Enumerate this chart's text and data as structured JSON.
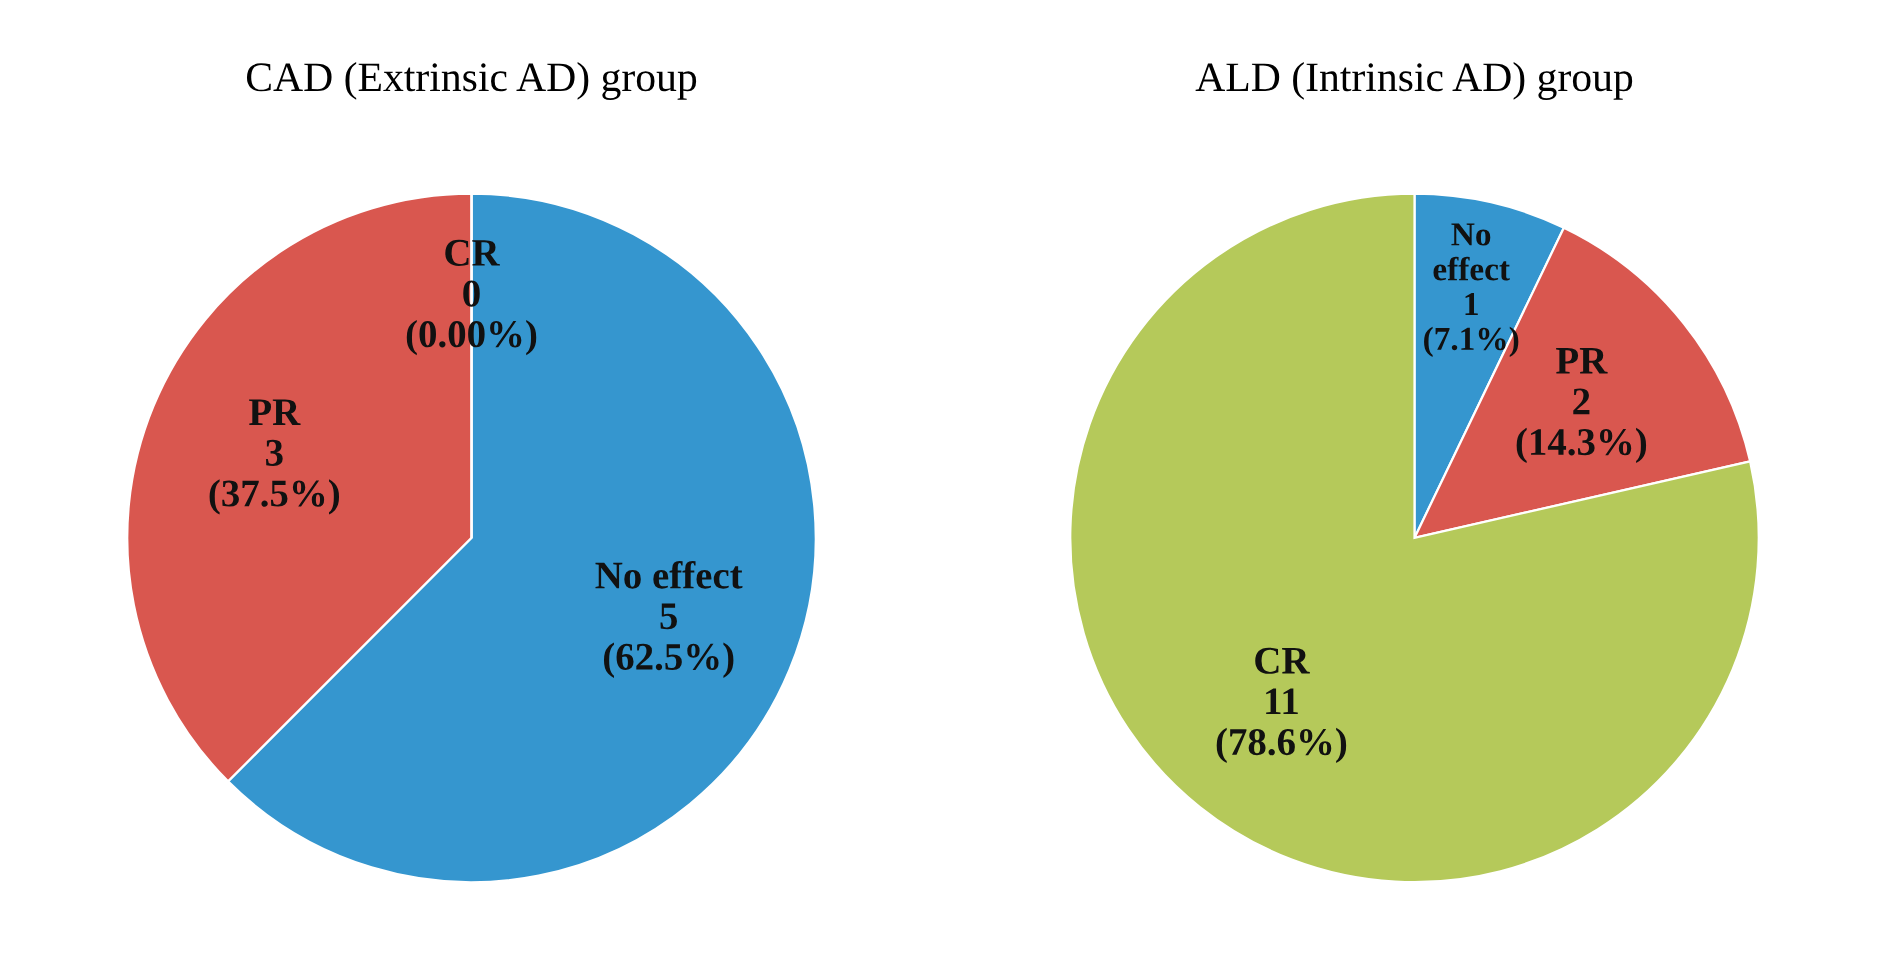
{
  "chart_data": [
    {
      "type": "pie",
      "title": "CAD (Extrinsic AD) group",
      "categories": [
        "No effect",
        "PR",
        "CR"
      ],
      "values": [
        5,
        3,
        0
      ],
      "colors": [
        "#3596cf",
        "#d9574f",
        "#b5c95a"
      ],
      "value_labels": [
        "5\n(62.5%)",
        "3\n(37.5%)",
        "0\n(0.00%)"
      ]
    },
    {
      "type": "pie",
      "title": "ALD (Intrinsic AD) group",
      "categories": [
        "No\neffect",
        "PR",
        "CR"
      ],
      "values": [
        1,
        2,
        11
      ],
      "colors": [
        "#3596cf",
        "#d9574f",
        "#b5c95a"
      ],
      "value_labels": [
        "1\n(7.1%)",
        "2\n(14.3%)",
        "11\n(78.6%)"
      ]
    }
  ]
}
